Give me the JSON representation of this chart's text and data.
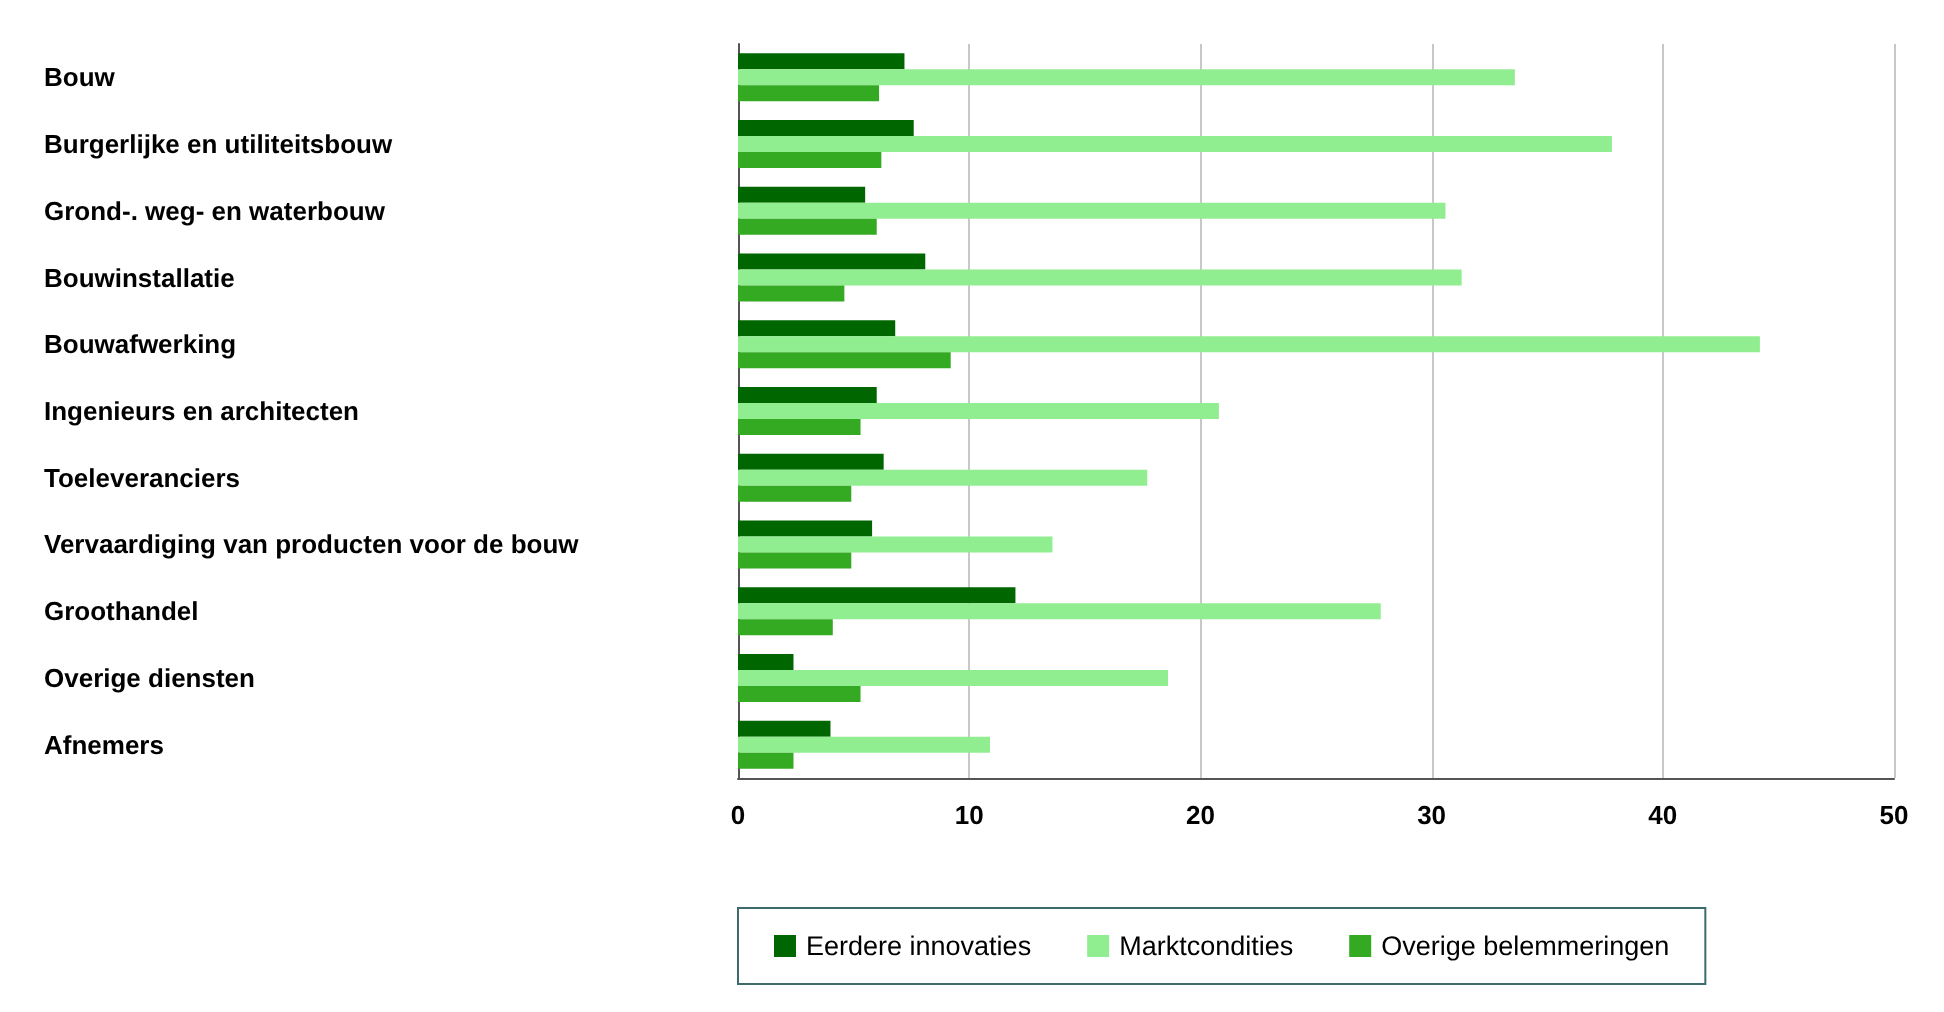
{
  "chart_data": {
    "type": "bar",
    "orientation": "horizontal",
    "categories": [
      "Bouw",
      "Burgerlijke en utiliteitsbouw",
      "Grond-. weg- en waterbouw",
      "Bouwinstallatie",
      "Bouwafwerking",
      "Ingenieurs en architecten",
      "Toeleveranciers",
      "Vervaardiging van producten voor de bouw",
      "Groothandel",
      "Overige diensten",
      "Afnemers"
    ],
    "series": [
      {
        "name": "Eerdere innovaties",
        "color": "#006600",
        "values": [
          7.2,
          7.6,
          5.5,
          8.1,
          6.8,
          6.0,
          6.3,
          5.8,
          12.0,
          2.4,
          4.0
        ]
      },
      {
        "name": "Marktcondities",
        "color": "#90ee90",
        "values": [
          33.6,
          37.8,
          30.6,
          31.3,
          44.2,
          20.8,
          17.7,
          13.6,
          27.8,
          18.6,
          10.9
        ]
      },
      {
        "name": "Overige belemmeringen",
        "color": "#33aa22",
        "values": [
          6.1,
          6.2,
          6.0,
          4.6,
          9.2,
          5.3,
          4.9,
          4.9,
          4.1,
          5.3,
          2.4
        ]
      }
    ],
    "xlim": [
      0,
      50
    ],
    "xticks": [
      0,
      10,
      20,
      30,
      40,
      50
    ],
    "grid": "x",
    "legend": "bottom"
  }
}
